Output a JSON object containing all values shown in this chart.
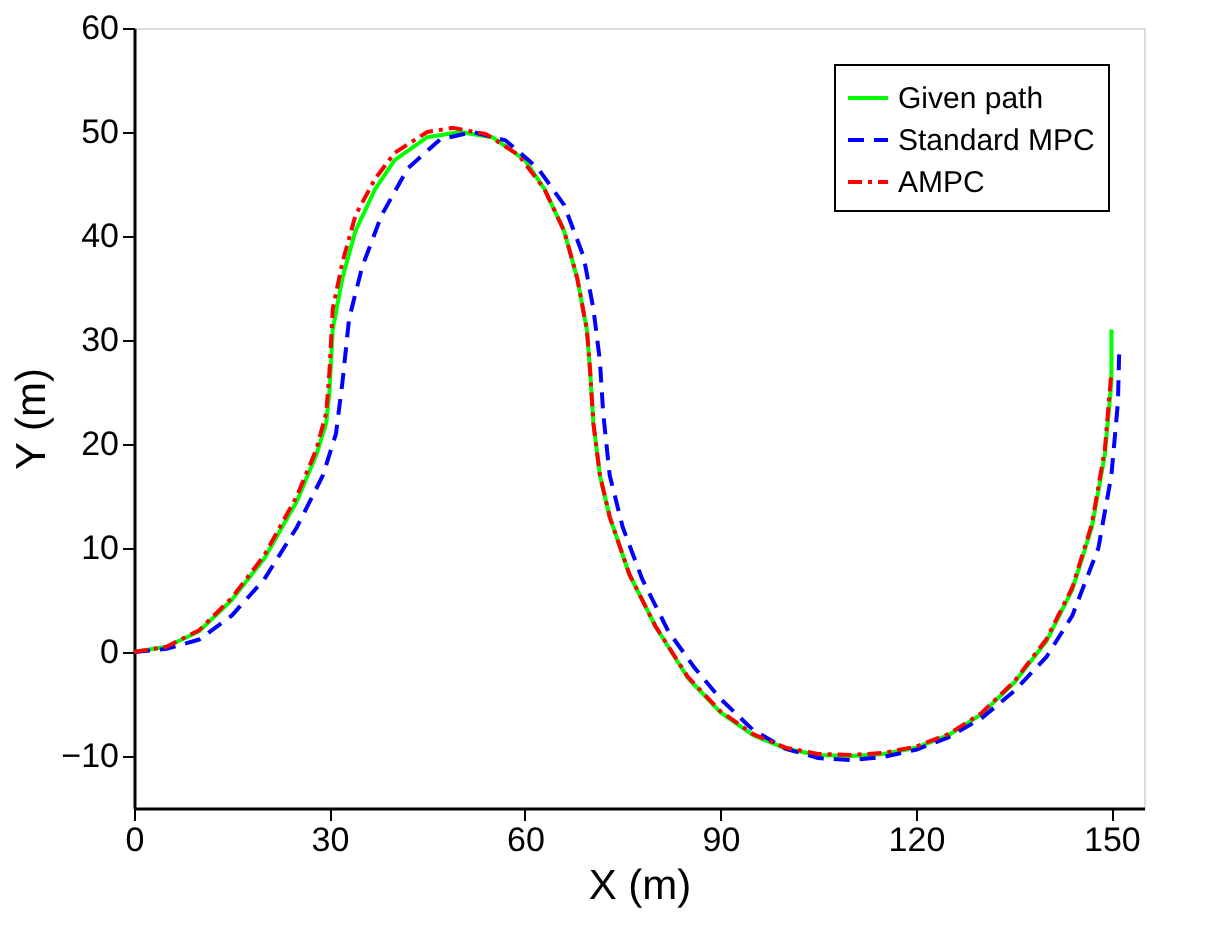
{
  "chart_data": {
    "type": "line",
    "xlabel": "X (m)",
    "ylabel": "Y (m)",
    "xlim": [
      0,
      155
    ],
    "xticks": [
      0,
      30,
      60,
      90,
      120,
      150
    ],
    "ylim": [
      -15,
      60
    ],
    "yticks": [
      -10,
      0,
      10,
      20,
      30,
      40,
      50,
      60
    ],
    "grid": false,
    "legend": "top right",
    "marker": "none",
    "series": [
      {
        "name": "Given path",
        "color": "#00ff00",
        "line_style": "solid",
        "x": [
          0,
          5,
          10,
          15,
          20,
          25,
          28,
          29.5,
          30,
          30.5,
          32,
          34,
          37,
          40,
          45,
          50,
          55,
          60,
          63,
          66,
          68,
          69.5,
          70,
          70.5,
          71.5,
          73,
          76,
          80,
          85,
          90,
          95,
          100,
          105,
          110,
          115,
          120,
          125,
          130,
          135,
          140,
          144,
          147,
          149,
          150,
          150
        ],
        "values": [
          0,
          0.5,
          2,
          5,
          9,
          14.5,
          19,
          22,
          25,
          31,
          36,
          40.5,
          44.5,
          47.3,
          49.5,
          50,
          49.5,
          47.3,
          44.5,
          40.5,
          36,
          31,
          27,
          22,
          17,
          13,
          7.5,
          2.5,
          -2.5,
          -5.8,
          -8,
          -9.3,
          -9.9,
          -10,
          -9.8,
          -9.2,
          -8,
          -6,
          -3,
          1,
          6,
          12,
          19,
          26,
          31
        ]
      },
      {
        "name": "Standard MPC",
        "color": "#0000ff",
        "line_style": "dashed",
        "x": [
          0,
          5,
          10,
          15,
          20,
          25,
          29,
          31,
          32,
          33,
          35,
          38,
          42,
          47,
          52,
          57,
          62,
          66,
          69,
          70.5,
          71.5,
          72,
          73,
          75,
          78,
          82,
          86,
          90,
          95,
          100,
          105,
          110,
          115,
          120,
          125,
          130,
          135,
          140,
          144,
          148,
          150,
          151,
          151.2
        ],
        "values": [
          0,
          0.3,
          1.2,
          3.5,
          7,
          12,
          17,
          21,
          26,
          32,
          37,
          42,
          46.5,
          49.3,
          50,
          49.2,
          46.5,
          43,
          38,
          33,
          28,
          23,
          17,
          12,
          7,
          2,
          -1.5,
          -4.5,
          -7.5,
          -9.3,
          -10.2,
          -10.4,
          -10.1,
          -9.4,
          -8.2,
          -6.4,
          -3.8,
          -0.5,
          3.5,
          10,
          17,
          24,
          29
        ]
      },
      {
        "name": "AMPC",
        "color": "#ff0000",
        "line_style": "dashdot",
        "x": [
          0,
          5,
          10,
          15,
          20,
          25,
          28,
          29.5,
          30,
          30.5,
          32,
          34,
          37,
          40,
          45,
          49,
          54,
          59,
          63,
          66,
          68,
          69.5,
          70,
          70.5,
          71.5,
          73,
          76,
          80,
          85,
          90,
          95,
          100,
          105,
          110,
          115,
          120,
          125,
          130,
          135,
          140,
          144,
          147,
          149,
          150
        ],
        "values": [
          0,
          0.5,
          2.1,
          5.2,
          9.3,
          15,
          19.5,
          23,
          27,
          33,
          37.5,
          42,
          45.5,
          48,
          50,
          50.4,
          49.8,
          47.8,
          44.5,
          40.5,
          36,
          31,
          27,
          22,
          17,
          13,
          7.5,
          2.5,
          -2.4,
          -5.7,
          -7.9,
          -9.2,
          -9.8,
          -9.9,
          -9.7,
          -9.1,
          -7.9,
          -5.9,
          -2.9,
          1.2,
          6.2,
          12.3,
          19.5,
          27
        ]
      }
    ]
  }
}
